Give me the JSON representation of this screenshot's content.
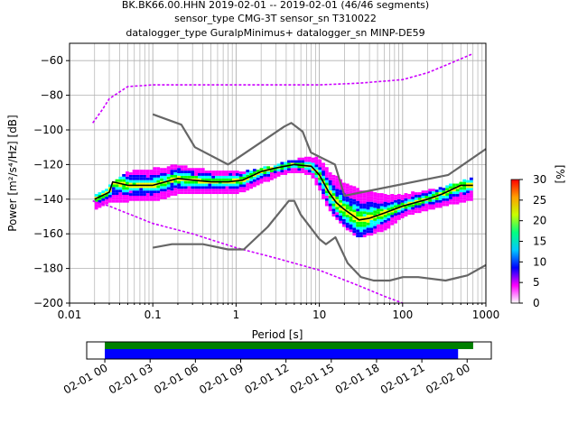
{
  "header": {
    "line1": "BK.BK66.00.HHN   2019-02-01 -- 2019-02-01  (46/46 segments)",
    "line2": "sensor_type CMG-3T sensor_sn T310022",
    "line3": "datalogger_type GuralpMinimus+ datalogger_sn MINP-DE59"
  },
  "chart_data": [
    {
      "type": "heatmap",
      "title": "",
      "xlabel": "Period [s]",
      "ylabel": "Power [m²/s⁴/Hz] [dB]",
      "xscale": "log",
      "xlim": [
        0.01,
        1000
      ],
      "ylim": [
        -200,
        -50
      ],
      "x_ticks": [
        {
          "value": 0.01,
          "label": "0.01"
        },
        {
          "value": 0.1,
          "label": "0.1"
        },
        {
          "value": 1,
          "label": "1"
        },
        {
          "value": 10,
          "label": "10"
        },
        {
          "value": 100,
          "label": "100"
        },
        {
          "value": 1000,
          "label": "1000"
        }
      ],
      "y_ticks": [
        {
          "value": -60,
          "label": "−60"
        },
        {
          "value": -80,
          "label": "−80"
        },
        {
          "value": -100,
          "label": "−100"
        },
        {
          "value": -120,
          "label": "−120"
        },
        {
          "value": -140,
          "label": "−140"
        },
        {
          "value": -160,
          "label": "−160"
        },
        {
          "value": -180,
          "label": "−180"
        },
        {
          "value": -200,
          "label": "−200"
        }
      ],
      "grid": true,
      "colorbar": {
        "label": "[%]",
        "range": [
          0,
          30
        ],
        "ticks": [
          "0",
          "5",
          "10",
          "15",
          "20",
          "25",
          "30"
        ],
        "colors": [
          "#ffffff",
          "#ff00ff",
          "#0000ff",
          "#00ffff",
          "#00ff00",
          "#ffff00",
          "#ff8000",
          "#ff0000",
          "#800000"
        ]
      },
      "series": [
        {
          "role": "new_high_noise_model",
          "color": "#666666",
          "points": [
            [
              0.1,
              -91
            ],
            [
              0.22,
              -97
            ],
            [
              0.32,
              -110
            ],
            [
              0.8,
              -120
            ],
            [
              3.8,
              -98
            ],
            [
              4.6,
              -96
            ],
            [
              6.3,
              -101
            ],
            [
              7.9,
              -113
            ],
            [
              15.4,
              -120
            ],
            [
              20,
              -138
            ],
            [
              354,
              -126
            ],
            [
              1000,
              -111
            ]
          ]
        },
        {
          "role": "new_low_noise_model",
          "color": "#666666",
          "points": [
            [
              0.1,
              -168
            ],
            [
              0.17,
              -166
            ],
            [
              0.4,
              -166
            ],
            [
              0.8,
              -169
            ],
            [
              1.24,
              -169
            ],
            [
              2.4,
              -156
            ],
            [
              4.3,
              -141
            ],
            [
              5,
              -141
            ],
            [
              6,
              -149
            ],
            [
              10,
              -163
            ],
            [
              12,
              -166
            ],
            [
              15.6,
              -162
            ],
            [
              21.9,
              -177
            ],
            [
              31.6,
              -185
            ],
            [
              45,
              -187
            ],
            [
              70,
              -187
            ],
            [
              101,
              -185
            ],
            [
              154,
              -185
            ],
            [
              328,
              -187
            ],
            [
              600,
              -184
            ],
            [
              1000,
              -178
            ]
          ]
        },
        {
          "role": "median_psd",
          "color": "#000000",
          "points": [
            [
              0.02,
              -140
            ],
            [
              0.03,
              -136
            ],
            [
              0.033,
              -130
            ],
            [
              0.05,
              -132
            ],
            [
              0.1,
              -132
            ],
            [
              0.2,
              -128
            ],
            [
              0.3,
              -129
            ],
            [
              0.5,
              -130
            ],
            [
              0.8,
              -130
            ],
            [
              1.2,
              -129
            ],
            [
              2,
              -124
            ],
            [
              3,
              -122
            ],
            [
              5,
              -120
            ],
            [
              8,
              -121
            ],
            [
              10,
              -126
            ],
            [
              13,
              -136
            ],
            [
              16,
              -142
            ],
            [
              20,
              -146
            ],
            [
              30,
              -152
            ],
            [
              40,
              -151
            ],
            [
              60,
              -148
            ],
            [
              100,
              -144
            ],
            [
              200,
              -140
            ],
            [
              300,
              -137
            ],
            [
              500,
              -132
            ],
            [
              700,
              -132
            ]
          ]
        }
      ],
      "density_outline": {
        "upper": [
          [
            0.02,
            -139
          ],
          [
            0.03,
            -133
          ],
          [
            0.05,
            -125
          ],
          [
            0.1,
            -123
          ],
          [
            0.2,
            -121
          ],
          [
            0.5,
            -124
          ],
          [
            1,
            -125
          ],
          [
            2,
            -123
          ],
          [
            3,
            -121
          ],
          [
            5,
            -118
          ],
          [
            8,
            -116
          ],
          [
            10,
            -117
          ],
          [
            13,
            -124
          ],
          [
            20,
            -131
          ],
          [
            30,
            -135
          ],
          [
            60,
            -138
          ],
          [
            100,
            -138
          ],
          [
            300,
            -134
          ],
          [
            700,
            -128
          ]
        ],
        "lower": [
          [
            0.02,
            -146
          ],
          [
            0.03,
            -142
          ],
          [
            0.05,
            -141
          ],
          [
            0.1,
            -141
          ],
          [
            0.2,
            -137
          ],
          [
            0.5,
            -137
          ],
          [
            1,
            -137
          ],
          [
            2,
            -131
          ],
          [
            3,
            -127
          ],
          [
            5,
            -124
          ],
          [
            8,
            -126
          ],
          [
            10,
            -134
          ],
          [
            13,
            -146
          ],
          [
            20,
            -156
          ],
          [
            30,
            -162
          ],
          [
            60,
            -158
          ],
          [
            100,
            -150
          ],
          [
            300,
            -144
          ],
          [
            700,
            -140
          ]
        ]
      },
      "sparse_high_trace": [
        [
          0.019,
          -96
        ],
        [
          0.025,
          -88
        ],
        [
          0.03,
          -82
        ],
        [
          0.05,
          -75
        ],
        [
          0.1,
          -74
        ],
        [
          0.3,
          -74
        ],
        [
          1,
          -74
        ],
        [
          3,
          -74
        ],
        [
          10,
          -74
        ],
        [
          30,
          -73
        ],
        [
          100,
          -71
        ],
        [
          200,
          -67
        ],
        [
          400,
          -61
        ],
        [
          700,
          -56
        ]
      ],
      "sparse_low_trace": [
        [
          0.019,
          -141
        ],
        [
          0.03,
          -144
        ],
        [
          0.1,
          -154
        ],
        [
          0.3,
          -160
        ],
        [
          1,
          -168
        ],
        [
          3,
          -174
        ],
        [
          10,
          -181
        ],
        [
          30,
          -190
        ],
        [
          60,
          -196
        ],
        [
          100,
          -200
        ]
      ]
    },
    {
      "type": "timeline",
      "x_ticks": [
        "02-01 00",
        "02-01 03",
        "02-01 06",
        "02-01 09",
        "02-01 12",
        "02-01 15",
        "02-01 18",
        "02-01 21",
        "02-02 00"
      ],
      "bars": [
        {
          "role": "data_coverage",
          "color": "#008000",
          "start_hour": 0,
          "end_hour": 24.4
        },
        {
          "role": "psd_coverage",
          "color": "#0000ff",
          "start_hour": 0,
          "end_hour": 23.4
        }
      ],
      "range_hours": [
        -1.2,
        25.6
      ]
    }
  ]
}
